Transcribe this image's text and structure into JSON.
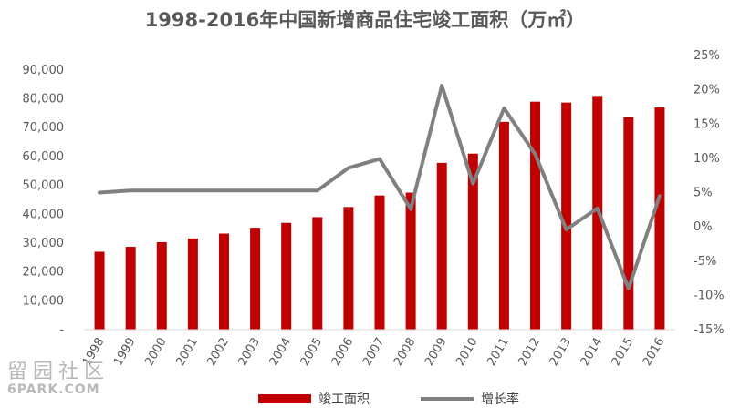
{
  "chart_data": {
    "type": "bar",
    "title": "1998-2016年中国新增商品住宅竣工面积（万㎡）",
    "categories": [
      "1998",
      "1999",
      "2000",
      "2001",
      "2002",
      "2003",
      "2004",
      "2005",
      "2006",
      "2007",
      "2008",
      "2009",
      "2010",
      "2011",
      "2012",
      "2013",
      "2014",
      "2015",
      "2016"
    ],
    "series": [
      {
        "name": "竣工面积",
        "type": "bar",
        "axis": "left",
        "color": "#c00000",
        "values": [
          27000,
          28700,
          30300,
          31600,
          33300,
          35300,
          37000,
          39000,
          42500,
          46500,
          47500,
          57800,
          61000,
          72000,
          79000,
          78700,
          81000,
          73700,
          77000
        ]
      },
      {
        "name": "增长率",
        "type": "line",
        "axis": "right",
        "color": "#808080",
        "unit": "%",
        "values": [
          5.0,
          5.3,
          5.3,
          5.3,
          5.3,
          5.3,
          5.3,
          5.3,
          8.6,
          9.9,
          2.6,
          20.6,
          6.3,
          17.3,
          10.6,
          -0.4,
          2.7,
          -9.0,
          4.5
        ]
      }
    ],
    "left_axis": {
      "ylim": [
        0,
        95000
      ],
      "ticks": [
        {
          "value": 0,
          "label": "-"
        },
        {
          "value": 10000,
          "label": "10,000"
        },
        {
          "value": 20000,
          "label": "20,000"
        },
        {
          "value": 30000,
          "label": "30,000"
        },
        {
          "value": 40000,
          "label": "40,000"
        },
        {
          "value": 50000,
          "label": "50,000"
        },
        {
          "value": 60000,
          "label": "60,000"
        },
        {
          "value": 70000,
          "label": "70,000"
        },
        {
          "value": 80000,
          "label": "80,000"
        },
        {
          "value": 90000,
          "label": "90,000"
        }
      ]
    },
    "right_axis": {
      "ylim": [
        -15,
        25
      ],
      "ticks": [
        {
          "value": -15,
          "label": "-15%"
        },
        {
          "value": -10,
          "label": "-10%"
        },
        {
          "value": -5,
          "label": "-5%"
        },
        {
          "value": 0,
          "label": "0%"
        },
        {
          "value": 5,
          "label": "5%"
        },
        {
          "value": 10,
          "label": "10%"
        },
        {
          "value": 15,
          "label": "15%"
        },
        {
          "value": 20,
          "label": "20%"
        },
        {
          "value": 25,
          "label": "25%"
        }
      ]
    },
    "grid": false,
    "legend": "bottom"
  },
  "watermark": {
    "chinese": "留园社区",
    "english": "6PARK.COM"
  }
}
